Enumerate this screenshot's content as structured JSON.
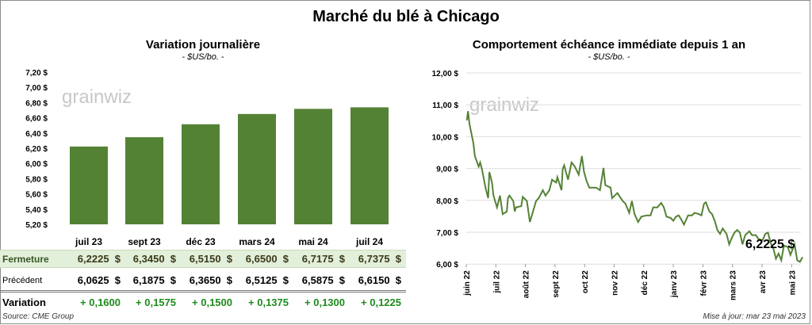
{
  "title": "Marché du blé à Chicago",
  "colors": {
    "bar": "#548235",
    "line": "#548235",
    "fermeture_bg": "#e2efda",
    "variation": "#1e8b1e"
  },
  "left": {
    "subtitle": "Variation journalière",
    "unit": "- $US/bo. -",
    "watermark": "grainwiz",
    "table": {
      "headers": [
        "juil 23",
        "sept 23",
        "déc 23",
        "mars 24",
        "mai 24",
        "juil 24"
      ],
      "rows": [
        {
          "label": "Fermeture",
          "values": [
            "6,2225  $",
            "6,3450  $",
            "6,5150  $",
            "6,6500  $",
            "6,7175  $",
            "6,7375  $"
          ]
        },
        {
          "label": "Précédent",
          "values": [
            "6,0625  $",
            "6,1875  $",
            "6,3650  $",
            "6,5125  $",
            "6,5875  $",
            "6,6150  $"
          ]
        },
        {
          "label": "Variation",
          "values": [
            "+ 0,1600",
            "+ 0,1575",
            "+ 0,1500",
            "+ 0,1375",
            "+ 0,1300",
            "+ 0,1225"
          ]
        }
      ]
    },
    "source": "Source: CME Group"
  },
  "right": {
    "subtitle": "Comportement  échéance immédiate depuis 1 an",
    "unit": "- $US/bo. -",
    "watermark": "grainwiz",
    "last_label": "6,2225 $",
    "updated": "Mise à jour: mar 23 mai 2023"
  },
  "chart_data": [
    {
      "type": "bar",
      "title": "Variation journalière",
      "ylabel": "$US/bo.",
      "categories": [
        "juil 23",
        "sept 23",
        "déc 23",
        "mars 24",
        "mai 24",
        "juil 24"
      ],
      "values": [
        6.2225,
        6.345,
        6.515,
        6.65,
        6.7175,
        6.7375
      ],
      "ylim": [
        5.2,
        7.2
      ],
      "yticks": [
        "5,20 $",
        "5,40 $",
        "5,60 $",
        "5,80 $",
        "6,00 $",
        "6,20 $",
        "6,40 $",
        "6,60 $",
        "6,80 $",
        "7,00 $",
        "7,20 $"
      ],
      "grid": false
    },
    {
      "type": "line",
      "title": "Comportement  échéance immédiate depuis 1 an",
      "ylabel": "$US/bo.",
      "ylim": [
        6,
        12
      ],
      "xlim_months": [
        0,
        11.4
      ],
      "yticks": [
        "6,00 $",
        "7,00 $",
        "8,00 $",
        "9,00 $",
        "10,00 $",
        "11,00 $",
        "12,00 $"
      ],
      "xticks": [
        "juin 22",
        "juil 22",
        "août 22",
        "sept 22",
        "oct 22",
        "nov 22",
        "déc 22",
        "janv 23",
        "févr 23",
        "mars 23",
        "avr 23",
        "mai 23"
      ],
      "grid": true,
      "points": [
        [
          0.02,
          10.51
        ],
        [
          0.06,
          10.8
        ],
        [
          0.11,
          10.39
        ],
        [
          0.24,
          9.8
        ],
        [
          0.29,
          9.39
        ],
        [
          0.42,
          9.06
        ],
        [
          0.47,
          9.19
        ],
        [
          0.53,
          8.98
        ],
        [
          0.65,
          8.4
        ],
        [
          0.74,
          8.07
        ],
        [
          0.78,
          8.89
        ],
        [
          0.87,
          8.56
        ],
        [
          0.92,
          8.15
        ],
        [
          1.04,
          7.78
        ],
        [
          1.14,
          8.15
        ],
        [
          1.23,
          7.57
        ],
        [
          1.37,
          7.65
        ],
        [
          1.41,
          8.07
        ],
        [
          1.46,
          8.15
        ],
        [
          1.59,
          7.98
        ],
        [
          1.64,
          7.65
        ],
        [
          1.68,
          7.78
        ],
        [
          1.86,
          7.82
        ],
        [
          1.91,
          8.11
        ],
        [
          2.05,
          7.98
        ],
        [
          2.15,
          7.32
        ],
        [
          2.23,
          7.57
        ],
        [
          2.36,
          7.98
        ],
        [
          2.45,
          8.07
        ],
        [
          2.59,
          8.32
        ],
        [
          2.68,
          8.15
        ],
        [
          2.81,
          8.32
        ],
        [
          2.9,
          8.65
        ],
        [
          3.04,
          8.56
        ],
        [
          3.08,
          8.73
        ],
        [
          3.22,
          8.32
        ],
        [
          3.26,
          8.98
        ],
        [
          3.31,
          9.1
        ],
        [
          3.44,
          8.65
        ],
        [
          3.56,
          9.19
        ],
        [
          3.67,
          9.06
        ],
        [
          3.8,
          8.81
        ],
        [
          3.91,
          9.39
        ],
        [
          3.98,
          8.9
        ],
        [
          4.07,
          8.6
        ],
        [
          4.16,
          8.4
        ],
        [
          4.39,
          8.4
        ],
        [
          4.52,
          8.32
        ],
        [
          4.64,
          9.02
        ],
        [
          4.7,
          8.48
        ],
        [
          4.88,
          8.4
        ],
        [
          4.93,
          8.07
        ],
        [
          5.11,
          8.23
        ],
        [
          5.29,
          7.98
        ],
        [
          5.38,
          7.9
        ],
        [
          5.51,
          7.61
        ],
        [
          5.6,
          7.98
        ],
        [
          5.69,
          7.57
        ],
        [
          5.81,
          7.32
        ],
        [
          5.92,
          7.49
        ],
        [
          6.1,
          7.53
        ],
        [
          6.23,
          7.53
        ],
        [
          6.32,
          7.78
        ],
        [
          6.46,
          7.78
        ],
        [
          6.59,
          7.92
        ],
        [
          6.68,
          7.78
        ],
        [
          6.77,
          7.49
        ],
        [
          6.91,
          7.45
        ],
        [
          7.0,
          7.36
        ],
        [
          7.09,
          7.49
        ],
        [
          7.18,
          7.53
        ],
        [
          7.27,
          7.4
        ],
        [
          7.36,
          7.24
        ],
        [
          7.5,
          7.53
        ],
        [
          7.63,
          7.53
        ],
        [
          7.72,
          7.61
        ],
        [
          7.86,
          7.57
        ],
        [
          7.95,
          7.53
        ],
        [
          8.04,
          7.9
        ],
        [
          8.1,
          7.94
        ],
        [
          8.22,
          7.65
        ],
        [
          8.31,
          7.57
        ],
        [
          8.4,
          7.36
        ],
        [
          8.49,
          7.07
        ],
        [
          8.58,
          6.95
        ],
        [
          8.67,
          7.12
        ],
        [
          8.8,
          6.95
        ],
        [
          8.89,
          6.62
        ],
        [
          8.98,
          6.83
        ],
        [
          9.07,
          6.99
        ],
        [
          9.16,
          7.07
        ],
        [
          9.25,
          6.99
        ],
        [
          9.34,
          6.62
        ],
        [
          9.43,
          6.91
        ],
        [
          9.57,
          7.03
        ],
        [
          9.66,
          6.91
        ],
        [
          9.79,
          6.91
        ],
        [
          9.88,
          6.79
        ],
        [
          10.02,
          6.75
        ],
        [
          10.11,
          6.95
        ],
        [
          10.2,
          6.99
        ],
        [
          10.29,
          6.66
        ],
        [
          10.38,
          6.5
        ],
        [
          10.47,
          6.17
        ],
        [
          10.56,
          6.33
        ],
        [
          10.65,
          6.12
        ],
        [
          10.74,
          6.58
        ],
        [
          10.87,
          6.54
        ],
        [
          10.96,
          6.29
        ],
        [
          11.1,
          6.62
        ],
        [
          11.19,
          6.12
        ],
        [
          11.28,
          6.07
        ],
        [
          11.37,
          6.22
        ]
      ],
      "annotation": "6,2225 $"
    }
  ]
}
